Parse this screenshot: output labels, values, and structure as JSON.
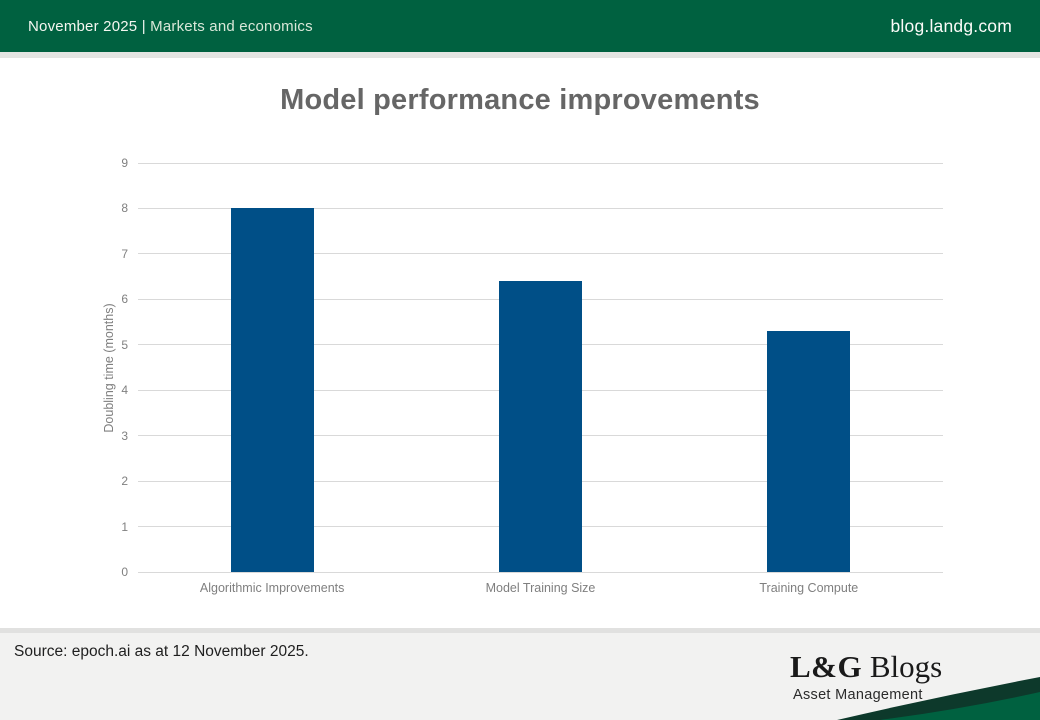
{
  "header": {
    "date_label": "November 2025 |",
    "category": "Markets and economics",
    "site": "blog.landg.com",
    "bg_color": "#006140"
  },
  "chart_data": {
    "type": "bar",
    "title": "Model performance improvements",
    "categories": [
      "Algorithmic Improvements",
      "Model Training Size",
      "Training Compute"
    ],
    "values": [
      8.0,
      6.4,
      5.3
    ],
    "xlabel": "",
    "ylabel": "Doubling time (months)",
    "ylim": [
      0,
      9
    ],
    "ytick_step": 1,
    "grid": true,
    "legend": false,
    "bar_color": "#004F87",
    "gridline_color": "#d9d9d9"
  },
  "footer": {
    "source": "Source: epoch.ai as at 12 November 2025.",
    "logo_lg": "L&G",
    "logo_blogs": "Blogs",
    "logo_subtitle": "Asset Management",
    "swoosh_dark_color": "#0d392b",
    "swoosh_green_color": "#006140"
  }
}
